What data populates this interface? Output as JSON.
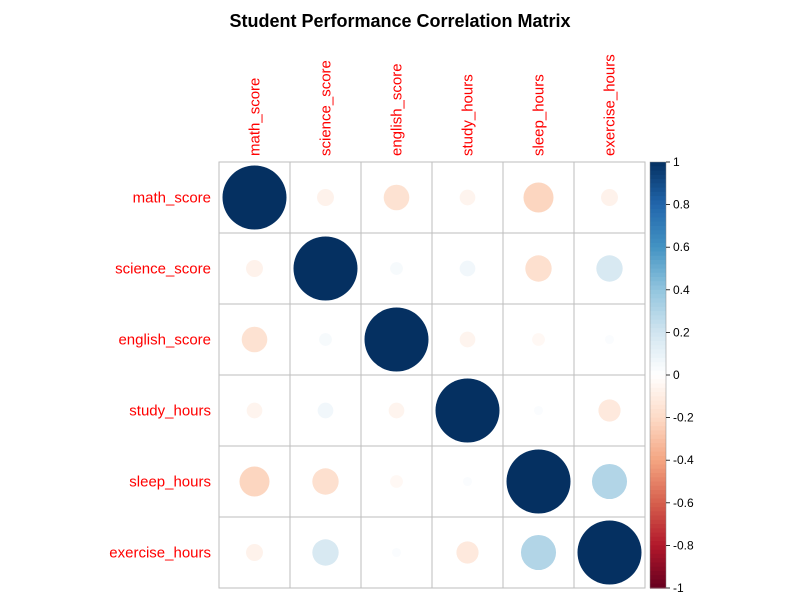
{
  "chart_data": {
    "type": "heatmap",
    "style": "circle-correlation-matrix",
    "title": "Student Performance Correlation Matrix",
    "variables": [
      "math_score",
      "science_score",
      "english_score",
      "study_hours",
      "sleep_hours",
      "exercise_hours"
    ],
    "matrix": [
      [
        1.0,
        -0.07,
        -0.16,
        -0.06,
        -0.22,
        -0.07
      ],
      [
        -0.07,
        1.0,
        0.04,
        0.06,
        -0.17,
        0.17
      ],
      [
        -0.16,
        0.04,
        1.0,
        -0.06,
        -0.04,
        0.02
      ],
      [
        -0.06,
        0.06,
        -0.06,
        1.0,
        0.02,
        -0.12
      ],
      [
        -0.22,
        -0.17,
        -0.04,
        0.02,
        1.0,
        0.3
      ],
      [
        -0.07,
        0.17,
        0.02,
        -0.12,
        0.3,
        1.0
      ]
    ],
    "colorbar": {
      "range": [
        -1,
        1
      ],
      "ticks": [
        "1",
        "0.8",
        "0.6",
        "0.4",
        "0.2",
        "0",
        "-0.2",
        "-0.4",
        "-0.6",
        "-0.8",
        "-1"
      ]
    },
    "label_color": "#FF0000",
    "grid_color": "#BEBEBE",
    "color_stops": [
      "#67001F",
      "#B2182B",
      "#D6604D",
      "#F4A582",
      "#FDDBC7",
      "#FFFFFF",
      "#D1E5F0",
      "#92C5DE",
      "#4393C3",
      "#2166AC",
      "#053061"
    ]
  }
}
